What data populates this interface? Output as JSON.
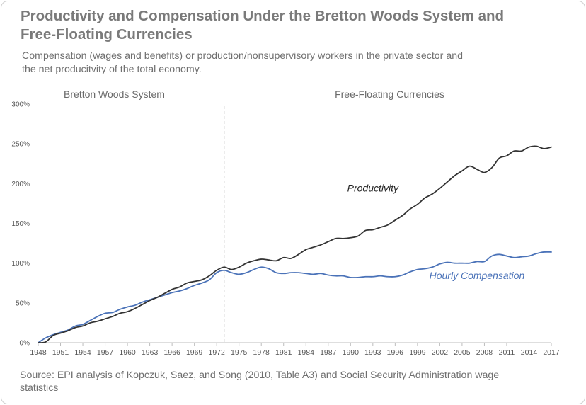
{
  "title": "Productivity and Compensation Under the Bretton Woods System and Free-Floating Currencies",
  "subtitle": "Compensation (wages and benefits) or production/nonsupervisory workers in the private sector and the net producitvity of the total economy.",
  "source": "Source: EPI analysis of Kopczuk, Saez, and Song (2010, Table A3) and Social Security Administration wage statistics",
  "colors": {
    "productivity": "#333333",
    "compensation": "#4a72b8",
    "divider": "#9a9a9a",
    "text": "#6f6f6f"
  },
  "chart_data": {
    "type": "line",
    "title": "Productivity and Compensation Under the Bretton Woods System and Free-Floating Currencies",
    "xlim": [
      1948,
      2017
    ],
    "ylim": [
      0,
      300
    ],
    "y_ticks": [
      "0%",
      "50%",
      "100%",
      "150%",
      "200%",
      "250%",
      "300%"
    ],
    "y_tick_values": [
      0,
      50,
      100,
      150,
      200,
      250,
      300
    ],
    "x_ticks": [
      "1948",
      "1951",
      "1954",
      "1957",
      "1960",
      "1963",
      "1966",
      "1969",
      "1972",
      "1975",
      "1978",
      "1981",
      "1984",
      "1987",
      "1990",
      "1993",
      "1996",
      "1999",
      "2002",
      "2005",
      "2008",
      "2011",
      "2014",
      "2017"
    ],
    "x_tick_values": [
      1948,
      1951,
      1954,
      1957,
      1960,
      1963,
      1966,
      1969,
      1972,
      1975,
      1978,
      1981,
      1984,
      1987,
      1990,
      1993,
      1996,
      1999,
      2002,
      2005,
      2008,
      2011,
      2014,
      2017
    ],
    "grid": false,
    "regions": [
      {
        "label": "Bretton Woods System",
        "from": 1948,
        "to": 1973
      },
      {
        "label": "Free-Floating Currencies",
        "from": 1973,
        "to": 2017
      }
    ],
    "divider_x": 1973,
    "series": [
      {
        "name": "Productivity",
        "label_at": {
          "x": 1993,
          "y": 190
        },
        "points": [
          [
            1948,
            0
          ],
          [
            1949,
            1
          ],
          [
            1950,
            9
          ],
          [
            1951,
            12
          ],
          [
            1952,
            15
          ],
          [
            1953,
            19
          ],
          [
            1954,
            21
          ],
          [
            1955,
            25
          ],
          [
            1956,
            27
          ],
          [
            1957,
            30
          ],
          [
            1958,
            33
          ],
          [
            1959,
            37
          ],
          [
            1960,
            39
          ],
          [
            1961,
            43
          ],
          [
            1962,
            48
          ],
          [
            1963,
            53
          ],
          [
            1964,
            57
          ],
          [
            1965,
            62
          ],
          [
            1966,
            67
          ],
          [
            1967,
            70
          ],
          [
            1968,
            75
          ],
          [
            1969,
            77
          ],
          [
            1970,
            79
          ],
          [
            1971,
            84
          ],
          [
            1972,
            91
          ],
          [
            1973,
            95
          ],
          [
            1974,
            92
          ],
          [
            1975,
            95
          ],
          [
            1976,
            100
          ],
          [
            1977,
            103
          ],
          [
            1978,
            105
          ],
          [
            1979,
            104
          ],
          [
            1980,
            103
          ],
          [
            1981,
            107
          ],
          [
            1982,
            106
          ],
          [
            1983,
            111
          ],
          [
            1984,
            117
          ],
          [
            1985,
            120
          ],
          [
            1986,
            123
          ],
          [
            1987,
            127
          ],
          [
            1988,
            131
          ],
          [
            1989,
            131
          ],
          [
            1990,
            132
          ],
          [
            1991,
            134
          ],
          [
            1992,
            141
          ],
          [
            1993,
            142
          ],
          [
            1994,
            145
          ],
          [
            1995,
            148
          ],
          [
            1996,
            154
          ],
          [
            1997,
            160
          ],
          [
            1998,
            168
          ],
          [
            1999,
            174
          ],
          [
            2000,
            182
          ],
          [
            2001,
            187
          ],
          [
            2002,
            194
          ],
          [
            2003,
            202
          ],
          [
            2004,
            210
          ],
          [
            2005,
            216
          ],
          [
            2006,
            222
          ],
          [
            2007,
            218
          ],
          [
            2008,
            214
          ],
          [
            2009,
            220
          ],
          [
            2010,
            232
          ],
          [
            2011,
            235
          ],
          [
            2012,
            241
          ],
          [
            2013,
            241
          ],
          [
            2014,
            246
          ],
          [
            2015,
            247
          ],
          [
            2016,
            244
          ],
          [
            2017,
            246
          ]
        ]
      },
      {
        "name": "Hourly Compensation",
        "label_at": {
          "x": 2007,
          "y": 80
        },
        "points": [
          [
            1948,
            0
          ],
          [
            1949,
            6
          ],
          [
            1950,
            10
          ],
          [
            1951,
            13
          ],
          [
            1952,
            16
          ],
          [
            1953,
            21
          ],
          [
            1954,
            23
          ],
          [
            1955,
            28
          ],
          [
            1956,
            33
          ],
          [
            1957,
            37
          ],
          [
            1958,
            38
          ],
          [
            1959,
            42
          ],
          [
            1960,
            45
          ],
          [
            1961,
            47
          ],
          [
            1962,
            51
          ],
          [
            1963,
            54
          ],
          [
            1964,
            57
          ],
          [
            1965,
            60
          ],
          [
            1966,
            63
          ],
          [
            1967,
            65
          ],
          [
            1968,
            68
          ],
          [
            1969,
            72
          ],
          [
            1970,
            75
          ],
          [
            1971,
            79
          ],
          [
            1972,
            88
          ],
          [
            1973,
            91
          ],
          [
            1974,
            88
          ],
          [
            1975,
            86
          ],
          [
            1976,
            88
          ],
          [
            1977,
            92
          ],
          [
            1978,
            95
          ],
          [
            1979,
            93
          ],
          [
            1980,
            88
          ],
          [
            1981,
            87
          ],
          [
            1982,
            88
          ],
          [
            1983,
            88
          ],
          [
            1984,
            87
          ],
          [
            1985,
            86
          ],
          [
            1986,
            87
          ],
          [
            1987,
            85
          ],
          [
            1988,
            84
          ],
          [
            1989,
            84
          ],
          [
            1990,
            82
          ],
          [
            1991,
            82
          ],
          [
            1992,
            83
          ],
          [
            1993,
            83
          ],
          [
            1994,
            84
          ],
          [
            1995,
            83
          ],
          [
            1996,
            83
          ],
          [
            1997,
            85
          ],
          [
            1998,
            89
          ],
          [
            1999,
            92
          ],
          [
            2000,
            93
          ],
          [
            2001,
            95
          ],
          [
            2002,
            99
          ],
          [
            2003,
            101
          ],
          [
            2004,
            100
          ],
          [
            2005,
            100
          ],
          [
            2006,
            100
          ],
          [
            2007,
            102
          ],
          [
            2008,
            102
          ],
          [
            2009,
            109
          ],
          [
            2010,
            111
          ],
          [
            2011,
            109
          ],
          [
            2012,
            107
          ],
          [
            2013,
            108
          ],
          [
            2014,
            109
          ],
          [
            2015,
            112
          ],
          [
            2016,
            114
          ],
          [
            2017,
            114
          ]
        ]
      }
    ]
  }
}
